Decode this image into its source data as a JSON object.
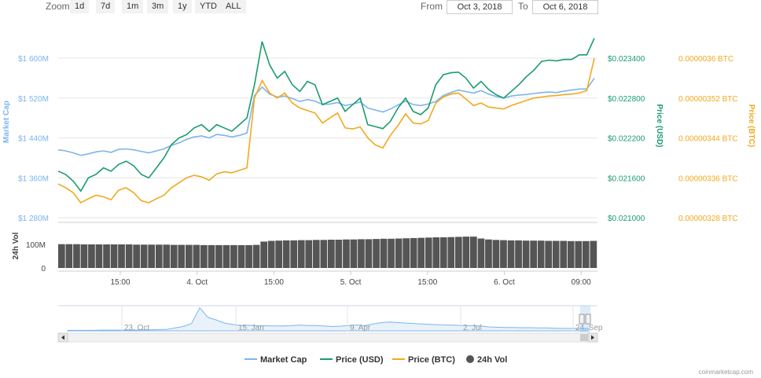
{
  "toolbar": {
    "zoom_label": "Zoom",
    "zoom_buttons": [
      "1d",
      "7d",
      "1m",
      "3m",
      "1y",
      "YTD",
      "ALL"
    ],
    "from_label": "From",
    "from_value": "Oct 3, 2018",
    "to_label": "To",
    "to_value": "Oct 6, 2018"
  },
  "colors": {
    "market_cap": "#7cb5ec",
    "price_usd": "#1a9c6b",
    "price_btc": "#f2a91e",
    "volume": "#555555"
  },
  "credit": "coinmarketcap.com",
  "chart_data": {
    "type": "line",
    "x_tick_labels": [
      "15:00",
      "4. Oct",
      "15:00",
      "5. Oct",
      "15:00",
      "6. Oct",
      "09:00"
    ],
    "axes": {
      "market_cap": {
        "label": "Market Cap",
        "ticks": [
          "$1 600M",
          "$1 520M",
          "$1 440M",
          "$1 360M",
          "$1 280M"
        ],
        "range": [
          1280,
          1600
        ],
        "unit": "M"
      },
      "price_usd": {
        "label": "Price (USD)",
        "ticks": [
          "$0.023400",
          "$0.022800",
          "$0.022200",
          "$0.021600",
          "$0.021000"
        ],
        "range": [
          0.021,
          0.0234
        ]
      },
      "price_btc": {
        "label": "Price (BTC)",
        "ticks": [
          "0.0000036 BTC",
          "0.00000352 BTC",
          "0.00000344 BTC",
          "0.00000336 BTC",
          "0.00000328 BTC"
        ],
        "range": [
          3.28e-06,
          3.6e-06
        ]
      },
      "volume": {
        "label": "24h Vol",
        "ticks": [
          "100M",
          "0"
        ],
        "range": [
          0,
          100
        ]
      }
    },
    "series": [
      {
        "name": "Market Cap",
        "values": [
          1416,
          1414,
          1410,
          1405,
          1408,
          1412,
          1414,
          1411,
          1417,
          1418,
          1416,
          1413,
          1410,
          1414,
          1418,
          1425,
          1430,
          1437,
          1442,
          1444,
          1440,
          1447,
          1445,
          1442,
          1445,
          1450,
          1525,
          1542,
          1528,
          1522,
          1524,
          1519,
          1513,
          1517,
          1514,
          1507,
          1508,
          1511,
          1505,
          1508,
          1512,
          1500,
          1496,
          1492,
          1498,
          1506,
          1514,
          1507,
          1505,
          1508,
          1513,
          1525,
          1531,
          1536,
          1533,
          1530,
          1535,
          1528,
          1523,
          1520,
          1524,
          1526,
          1527,
          1529,
          1531,
          1532,
          1531,
          1534,
          1536,
          1538,
          1538,
          1560
        ]
      },
      {
        "name": "Price (USD)",
        "values": [
          0.0217,
          0.02165,
          0.02155,
          0.0214,
          0.0216,
          0.02165,
          0.02175,
          0.0217,
          0.0218,
          0.02185,
          0.02178,
          0.02165,
          0.0216,
          0.02175,
          0.0219,
          0.0221,
          0.0222,
          0.02225,
          0.02235,
          0.0224,
          0.0223,
          0.0224,
          0.02235,
          0.0223,
          0.0224,
          0.0225,
          0.023,
          0.02365,
          0.0233,
          0.0231,
          0.0232,
          0.023,
          0.0229,
          0.02305,
          0.023,
          0.0227,
          0.02275,
          0.0228,
          0.0226,
          0.0227,
          0.0228,
          0.0224,
          0.02237,
          0.02234,
          0.02245,
          0.02265,
          0.0228,
          0.0226,
          0.02255,
          0.02265,
          0.023,
          0.02315,
          0.02318,
          0.02319,
          0.0231,
          0.02295,
          0.02305,
          0.02293,
          0.02285,
          0.0228,
          0.0229,
          0.023,
          0.02312,
          0.02322,
          0.02335,
          0.02337,
          0.02336,
          0.02338,
          0.02338,
          0.02345,
          0.02345,
          0.0237
        ]
      },
      {
        "name": "Price (BTC)",
        "values": [
          3.348e-06,
          3.34e-06,
          3.33e-06,
          3.31e-06,
          3.318e-06,
          3.325e-06,
          3.322e-06,
          3.316e-06,
          3.335e-06,
          3.34e-06,
          3.33e-06,
          3.314e-06,
          3.31e-06,
          3.318e-06,
          3.325e-06,
          3.34e-06,
          3.35e-06,
          3.36e-06,
          3.365e-06,
          3.362e-06,
          3.355e-06,
          3.368e-06,
          3.372e-06,
          3.37e-06,
          3.375e-06,
          3.38e-06,
          3.52e-06,
          3.555e-06,
          3.53e-06,
          3.52e-06,
          3.53e-06,
          3.51e-06,
          3.5e-06,
          3.495e-06,
          3.49e-06,
          3.47e-06,
          3.48e-06,
          3.49e-06,
          3.46e-06,
          3.458e-06,
          3.462e-06,
          3.44e-06,
          3.426e-06,
          3.42e-06,
          3.445e-06,
          3.465e-06,
          3.488e-06,
          3.47e-06,
          3.468e-06,
          3.475e-06,
          3.51e-06,
          3.522e-06,
          3.528e-06,
          3.53e-06,
          3.518e-06,
          3.505e-06,
          3.51e-06,
          3.502e-06,
          3.5e-06,
          3.498e-06,
          3.505e-06,
          3.51e-06,
          3.515e-06,
          3.52e-06,
          3.522e-06,
          3.524e-06,
          3.525e-06,
          3.527e-06,
          3.528e-06,
          3.53e-06,
          3.535e-06,
          3.6e-06
        ]
      },
      {
        "name": "24h Vol",
        "values": [
          101,
          101,
          101,
          100,
          100,
          100,
          100,
          100,
          100,
          100,
          99,
          99,
          99,
          99,
          99,
          98,
          98,
          98,
          98,
          97,
          97,
          97,
          97,
          97,
          97,
          97,
          98,
          112,
          115,
          116,
          117,
          117,
          118,
          118,
          119,
          119,
          120,
          120,
          121,
          121,
          122,
          122,
          123,
          124,
          124,
          125,
          126,
          127,
          128,
          129,
          130,
          130,
          131,
          132,
          133,
          133,
          125,
          121,
          119,
          118,
          117,
          117,
          116,
          116,
          116,
          115,
          115,
          115,
          114,
          114,
          114,
          115
        ]
      }
    ],
    "navigator": {
      "x_tick_labels": [
        "23. Oct",
        "15. Jan",
        "9. Apr",
        "2. Jul",
        "24. Sep"
      ],
      "values": [
        0.2,
        0.2,
        0.2,
        0.2,
        0.3,
        0.3,
        0.3,
        0.3,
        0.3,
        0.4,
        0.4,
        0.5,
        0.6,
        1.2,
        1.8,
        3.0,
        9.5,
        5.5,
        4.5,
        3.2,
        2.6,
        2.2,
        2.3,
        2.1,
        2.1,
        2.0,
        2.0,
        2.1,
        2.4,
        2.2,
        2.2,
        2.0,
        1.8,
        1.9,
        2.2,
        2.4,
        2.2,
        2.8,
        3.4,
        3.6,
        3.4,
        3.2,
        3.0,
        2.8,
        2.6,
        2.5,
        2.4,
        2.3,
        2.2,
        2.1,
        2.0,
        1.6,
        1.5,
        1.4,
        1.4,
        1.3,
        1.3,
        1.2,
        1.2,
        1.1,
        1.0,
        1.0,
        1.0,
        1.0
      ]
    },
    "legend": [
      "Market Cap",
      "Price (USD)",
      "Price (BTC)",
      "24h Vol"
    ]
  }
}
